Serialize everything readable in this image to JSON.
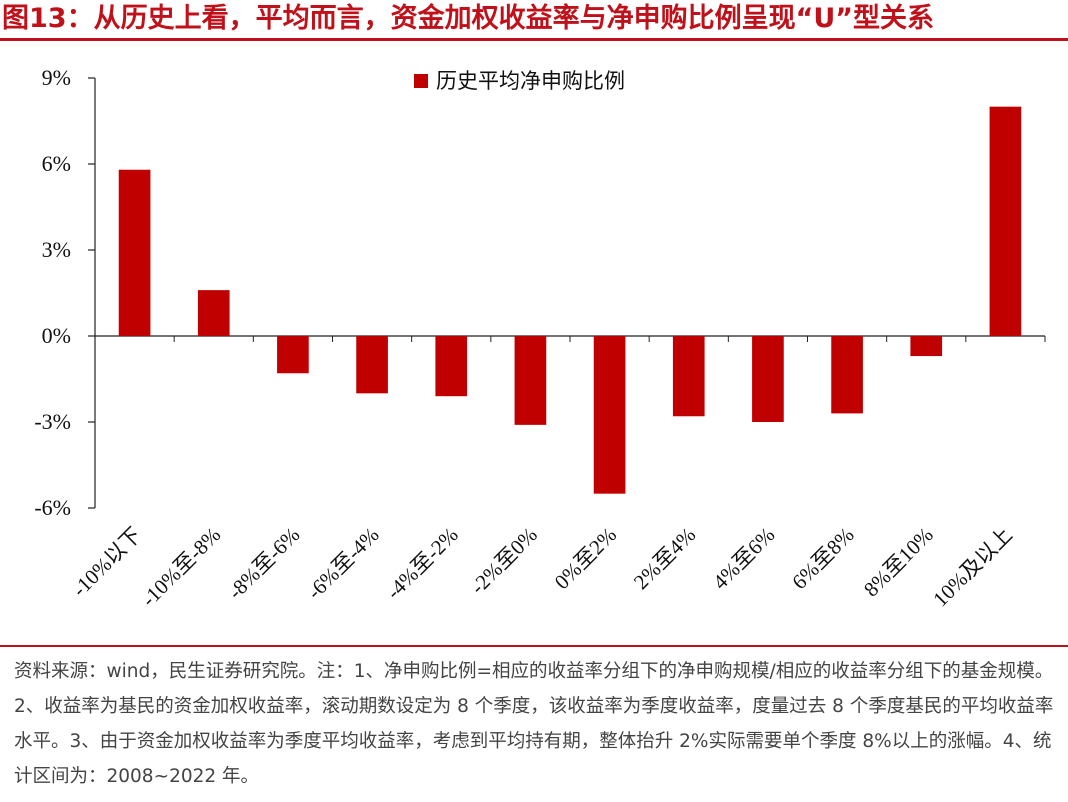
{
  "title": "图13：从历史上看，平均而言，资金加权收益率与净申购比例呈现“U”型关系",
  "note": "资料来源：wind，民生证券研究院。注：1、净申购比例=相应的收益率分组下的净申购规模/相应的收益率分组下的基金规模。2、收益率为基民的资金加权收益率，滚动期数设定为 8 个季度，该收益率为季度收益率，度量过去 8 个季度基民的平均收益率水平。3、由于资金加权收益率为季度平均收益率，考虑到平均持有期，整体抬升 2%实际需要单个季度 8%以上的涨幅。4、统计区间为：2008~2022 年。",
  "colors": {
    "accent": "#c0111a",
    "bar": "#c00000"
  },
  "chart_data": {
    "type": "bar",
    "categories": [
      "-10%以下",
      "-10%至-8%",
      "-8%至-6%",
      "-6%至-4%",
      "-4%至-2%",
      "-2%至0%",
      "0%至2%",
      "2%至4%",
      "4%至6%",
      "6%至8%",
      "8%至10%",
      "10%及以上"
    ],
    "series": [
      {
        "name": "历史平均净申购比例",
        "values": [
          5.8,
          1.6,
          -1.3,
          -2.0,
          -2.1,
          -3.1,
          -5.5,
          -2.8,
          -3.0,
          -2.7,
          -0.7,
          8.0
        ]
      }
    ],
    "yticks": [
      "9%",
      "6%",
      "3%",
      "0%",
      "-3%",
      "-6%"
    ],
    "ylim": [
      -6,
      9
    ],
    "legend_position": "top-center",
    "grid": false
  }
}
